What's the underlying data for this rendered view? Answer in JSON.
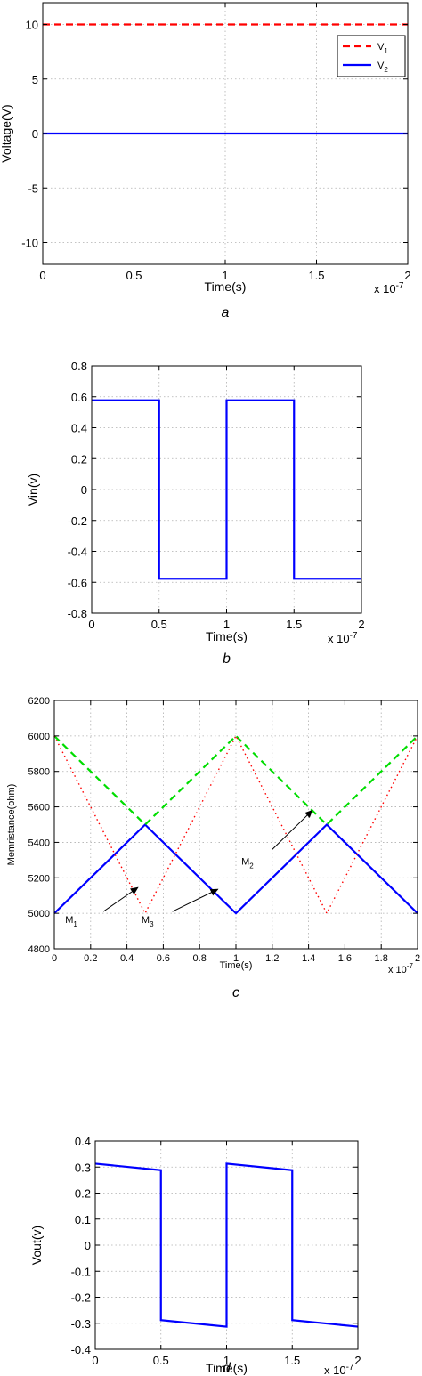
{
  "chart_data": [
    {
      "id": "a",
      "type": "line",
      "caption": "a",
      "xlabel": "Time(s)",
      "ylabel": "Voltage(V)",
      "x_exponent_label": "x 10",
      "x_exponent_power": "-7",
      "xlim": [
        0,
        2
      ],
      "ylim": [
        -12,
        12
      ],
      "xticks": [
        "0",
        "0.5",
        "1",
        "1.5",
        "2"
      ],
      "xtick_values": [
        0,
        0.5,
        1,
        1.5,
        2
      ],
      "yticks": [
        "-10",
        "-5",
        "0",
        "5",
        "10"
      ],
      "ytick_values": [
        -10,
        -5,
        0,
        5,
        10
      ],
      "grid": true,
      "legend_position": "top-right",
      "series": [
        {
          "name": "V",
          "subscript": "1",
          "color": "#ff0000",
          "style": "dashed",
          "points": [
            [
              0,
              10
            ],
            [
              2,
              10
            ]
          ]
        },
        {
          "name": "V",
          "subscript": "2",
          "color": "#0000ff",
          "style": "solid",
          "points": [
            [
              0,
              0
            ],
            [
              2,
              0
            ]
          ]
        }
      ],
      "annotations": []
    },
    {
      "id": "b",
      "type": "line",
      "caption": "b",
      "xlabel": "Time(s)",
      "ylabel": "Vin(v)",
      "x_exponent_label": "x 10",
      "x_exponent_power": "-7",
      "xlim": [
        0,
        2
      ],
      "ylim": [
        -0.8,
        0.8
      ],
      "xticks": [
        "0",
        "0.5",
        "1",
        "1.5",
        "2"
      ],
      "xtick_values": [
        0,
        0.5,
        1,
        1.5,
        2
      ],
      "yticks": [
        "-0.8",
        "-0.6",
        "-0.4",
        "-0.2",
        "0",
        "0.2",
        "0.4",
        "0.6",
        "0.8"
      ],
      "ytick_values": [
        -0.8,
        -0.6,
        -0.4,
        -0.2,
        0,
        0.2,
        0.4,
        0.6,
        0.8
      ],
      "grid": true,
      "series": [
        {
          "color": "#0000ff",
          "style": "solid",
          "points": [
            [
              0,
              0.577
            ],
            [
              0.5,
              0.577
            ],
            [
              0.5,
              -0.577
            ],
            [
              1,
              -0.577
            ],
            [
              1,
              0.577
            ],
            [
              1.5,
              0.577
            ],
            [
              1.5,
              -0.577
            ],
            [
              2,
              -0.577
            ]
          ]
        }
      ],
      "annotations": []
    },
    {
      "id": "c",
      "type": "line",
      "caption": "c",
      "xlabel": "Time(s)",
      "ylabel": "Memristance(ohm)",
      "x_exponent_label": "x 10",
      "x_exponent_power": "-7",
      "xlim": [
        0,
        2
      ],
      "ylim": [
        4800,
        6200
      ],
      "xticks": [
        "0",
        "0.2",
        "0.4",
        "0.6",
        "0.8",
        "1",
        "1.2",
        "1.4",
        "1.6",
        "1.8",
        "2"
      ],
      "xtick_values": [
        0,
        0.2,
        0.4,
        0.6,
        0.8,
        1,
        1.2,
        1.4,
        1.6,
        1.8,
        2
      ],
      "yticks": [
        "4800",
        "5000",
        "5200",
        "5400",
        "5600",
        "5800",
        "6000",
        "6200"
      ],
      "ytick_values": [
        4800,
        5000,
        5200,
        5400,
        5600,
        5800,
        6000,
        6200
      ],
      "grid": true,
      "small_text": true,
      "series": [
        {
          "color": "#0000ff",
          "style": "solid",
          "points": [
            [
              0,
              5000
            ],
            [
              0.5,
              5500
            ],
            [
              1,
              5000
            ],
            [
              1.5,
              5500
            ],
            [
              2,
              5000
            ]
          ]
        },
        {
          "color": "#00dd00",
          "style": "dashed",
          "points": [
            [
              0,
              6000
            ],
            [
              0.5,
              5500
            ],
            [
              1,
              6000
            ],
            [
              1.5,
              5500
            ],
            [
              2,
              6000
            ]
          ]
        },
        {
          "color": "#ff0000",
          "style": "dotted",
          "points": [
            [
              0,
              6000
            ],
            [
              0.5,
              5000
            ],
            [
              1,
              6000
            ],
            [
              1.5,
              5000
            ],
            [
              2,
              6000
            ]
          ]
        }
      ],
      "annotations": [
        {
          "label": "M",
          "sub": "1",
          "text_at": [
            0.06,
            4945
          ],
          "from": [
            0.27,
            5010
          ],
          "to": [
            0.46,
            5145
          ]
        },
        {
          "label": "M",
          "sub": "3",
          "text_at": [
            0.48,
            4945
          ],
          "from": [
            0.65,
            5010
          ],
          "to": [
            0.9,
            5135
          ]
        },
        {
          "label": "M",
          "sub": "2",
          "text_at": [
            1.03,
            5275
          ],
          "from": [
            1.2,
            5360
          ],
          "to": [
            1.42,
            5580
          ]
        }
      ]
    },
    {
      "id": "d",
      "type": "line",
      "caption": "d",
      "xlabel": "Time(s)",
      "ylabel": "Vout(v)",
      "x_exponent_label": "x 10",
      "x_exponent_power": "-7",
      "xlim": [
        0,
        2
      ],
      "ylim": [
        -0.4,
        0.4
      ],
      "xticks": [
        "0",
        "0.5",
        "1",
        "1.5",
        "2"
      ],
      "xtick_values": [
        0,
        0.5,
        1,
        1.5,
        2
      ],
      "yticks": [
        "-0.4",
        "-0.3",
        "-0.2",
        "-0.1",
        "0",
        "0.1",
        "0.2",
        "0.3",
        "0.4"
      ],
      "ytick_values": [
        -0.4,
        -0.3,
        -0.2,
        -0.1,
        0,
        0.1,
        0.2,
        0.3,
        0.4
      ],
      "grid": true,
      "series": [
        {
          "color": "#0000ff",
          "style": "solid",
          "points": [
            [
              0,
              0.313
            ],
            [
              0.5,
              0.288
            ],
            [
              0.5,
              -0.288
            ],
            [
              1,
              -0.313
            ],
            [
              1,
              0.313
            ],
            [
              1.5,
              0.288
            ],
            [
              1.5,
              -0.288
            ],
            [
              2,
              -0.313
            ]
          ]
        }
      ],
      "annotations": []
    }
  ]
}
